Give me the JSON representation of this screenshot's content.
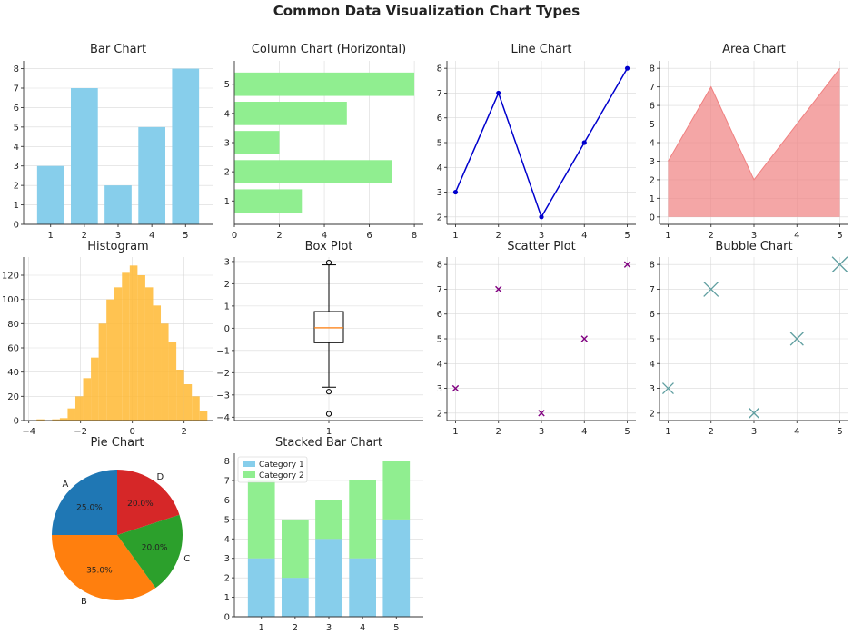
{
  "suptitle": "Common Data Visualization Chart Types",
  "colors": {
    "bar": "#87ceeb",
    "hbar": "#90ee90",
    "line": "#0000cd",
    "area": "#f08080",
    "hist": "#ffb833",
    "box_median": "#ff7f0e",
    "scatter": "#800080",
    "bubble": "#5f9ea0",
    "pie": [
      "#1f77b4",
      "#ff7f0e",
      "#2ca02c",
      "#d62728"
    ],
    "stack1": "#87ceeb",
    "stack2": "#90ee90"
  },
  "chart_data": [
    {
      "id": "bar",
      "type": "bar",
      "title": "Bar Chart",
      "categories": [
        "1",
        "2",
        "3",
        "4",
        "5"
      ],
      "values": [
        3,
        7,
        2,
        5,
        8
      ],
      "ylim": [
        0,
        8.4
      ],
      "yticks": [
        0,
        1,
        2,
        3,
        4,
        5,
        6,
        7,
        8
      ],
      "grid": true
    },
    {
      "id": "hbar",
      "type": "bar",
      "orientation": "horizontal",
      "title": "Column Chart (Horizontal)",
      "categories": [
        "1",
        "2",
        "3",
        "4",
        "5"
      ],
      "values": [
        3,
        7,
        2,
        5,
        8
      ],
      "xlim": [
        0,
        8.4
      ],
      "xticks": [
        0,
        2,
        4,
        6,
        8
      ],
      "grid": true
    },
    {
      "id": "line",
      "type": "line",
      "title": "Line Chart",
      "x": [
        1,
        2,
        3,
        4,
        5
      ],
      "y": [
        3,
        7,
        2,
        5,
        8
      ],
      "xlim": [
        0.8,
        5.2
      ],
      "ylim": [
        1.7,
        8.3
      ],
      "xticks": [
        1,
        2,
        3,
        4,
        5
      ],
      "yticks": [
        2,
        3,
        4,
        5,
        6,
        7,
        8
      ],
      "grid": true
    },
    {
      "id": "area",
      "type": "area",
      "title": "Area Chart",
      "x": [
        1,
        2,
        3,
        4,
        5
      ],
      "y": [
        3,
        7,
        2,
        5,
        8
      ],
      "xlim": [
        0.8,
        5.2
      ],
      "ylim": [
        -0.4,
        8.4
      ],
      "xticks": [
        1,
        2,
        3,
        4,
        5
      ],
      "yticks": [
        0,
        1,
        2,
        3,
        4,
        5,
        6,
        7,
        8
      ],
      "grid": true
    },
    {
      "id": "hist",
      "type": "bar",
      "subtype": "histogram",
      "title": "Histogram",
      "bin_edges": [
        -3.7,
        -3.4,
        -3.1,
        -2.8,
        -2.5,
        -2.2,
        -1.9,
        -1.6,
        -1.3,
        -1.0,
        -0.7,
        -0.4,
        -0.1,
        0.2,
        0.5,
        0.8,
        1.1,
        1.4,
        1.7,
        2.0,
        2.3,
        2.6,
        2.9
      ],
      "counts": [
        1,
        0,
        1,
        2,
        10,
        20,
        35,
        52,
        80,
        100,
        110,
        122,
        128,
        120,
        110,
        95,
        80,
        65,
        42,
        30,
        20,
        8
      ],
      "xlim": [
        -4.2,
        3.1
      ],
      "ylim": [
        0,
        135
      ],
      "xticks": [
        -4,
        -2,
        0,
        2
      ],
      "yticks": [
        0,
        20,
        40,
        60,
        80,
        100,
        120
      ],
      "grid": true
    },
    {
      "id": "box",
      "type": "box",
      "title": "Box Plot",
      "categories": [
        "1"
      ],
      "whisker_low": -2.65,
      "q1": -0.65,
      "median": 0.02,
      "q3": 0.75,
      "whisker_high": 2.85,
      "outliers": [
        2.95,
        -2.85,
        -3.85
      ],
      "ylim": [
        -4.15,
        3.2
      ],
      "yticks": [
        -4,
        -3,
        -2,
        -1,
        0,
        1,
        2,
        3
      ],
      "grid": true
    },
    {
      "id": "scatter",
      "type": "scatter",
      "title": "Scatter Plot",
      "x": [
        1,
        2,
        3,
        4,
        5
      ],
      "y": [
        3,
        7,
        2,
        5,
        8
      ],
      "marker": "x",
      "xlim": [
        0.8,
        5.2
      ],
      "ylim": [
        1.7,
        8.3
      ],
      "xticks": [
        1,
        2,
        3,
        4,
        5
      ],
      "yticks": [
        2,
        3,
        4,
        5,
        6,
        7,
        8
      ],
      "grid": true
    },
    {
      "id": "bubble",
      "type": "scatter",
      "subtype": "bubble",
      "title": "Bubble Chart",
      "x": [
        1,
        2,
        3,
        4,
        5
      ],
      "y": [
        3,
        7,
        2,
        5,
        8
      ],
      "sizes": [
        3,
        7,
        2,
        5,
        8
      ],
      "marker": "x",
      "xlim": [
        0.8,
        5.2
      ],
      "ylim": [
        1.7,
        8.3
      ],
      "xticks": [
        1,
        2,
        3,
        4,
        5
      ],
      "yticks": [
        2,
        3,
        4,
        5,
        6,
        7,
        8
      ],
      "grid": true
    },
    {
      "id": "pie",
      "type": "pie",
      "title": "Pie Chart",
      "labels": [
        "A",
        "B",
        "C",
        "D"
      ],
      "values": [
        25,
        35,
        20,
        20
      ],
      "pct_labels": [
        "25.0%",
        "35.0%",
        "20.0%",
        "20.0%"
      ],
      "start_angle_deg": 90
    },
    {
      "id": "stacked",
      "type": "bar",
      "subtype": "stacked",
      "title": "Stacked Bar Chart",
      "categories": [
        "1",
        "2",
        "3",
        "4",
        "5"
      ],
      "series": [
        {
          "name": "Category 1",
          "values": [
            3,
            2,
            4,
            3,
            5
          ]
        },
        {
          "name": "Category 2",
          "values": [
            4,
            3,
            2,
            4,
            3
          ]
        }
      ],
      "ylim": [
        0,
        8.4
      ],
      "yticks": [
        0,
        1,
        2,
        3,
        4,
        5,
        6,
        7,
        8
      ],
      "legend": "top-left",
      "grid": true
    }
  ]
}
